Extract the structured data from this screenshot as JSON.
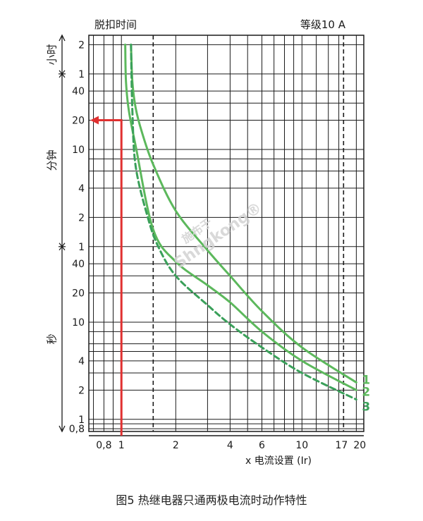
{
  "chart_data": {
    "type": "line",
    "title": "等级10 A",
    "ylabel": "脱扣时间",
    "xlabel": "x 电流设置 (Ir)",
    "x_scale": "log",
    "y_scale": "log",
    "xlim": [
      0.66,
      22
    ],
    "ylim_seconds": [
      0.75,
      9000
    ],
    "x_ticks": [
      {
        "label": "0,8",
        "value": 0.8
      },
      {
        "label": "1",
        "value": 1
      },
      {
        "label": "2",
        "value": 2
      },
      {
        "label": "4",
        "value": 4
      },
      {
        "label": "6",
        "value": 6
      },
      {
        "label": "10",
        "value": 10
      },
      {
        "label": "17",
        "value": 17
      },
      {
        "label": "20",
        "value": 20
      }
    ],
    "y_ticks": [
      {
        "label": "2",
        "value_s": 7200
      },
      {
        "label": "1",
        "value_s": 3600
      },
      {
        "label": "40",
        "value_s": 2400
      },
      {
        "label": "20",
        "value_s": 1200
      },
      {
        "label": "10",
        "value_s": 600
      },
      {
        "label": "4",
        "value_s": 240
      },
      {
        "label": "2",
        "value_s": 120
      },
      {
        "label": "1",
        "value_s": 60
      },
      {
        "label": "40",
        "value_s": 40
      },
      {
        "label": "20",
        "value_s": 20
      },
      {
        "label": "10",
        "value_s": 10
      },
      {
        "label": "4",
        "value_s": 4
      },
      {
        "label": "2",
        "value_s": 2
      },
      {
        "label": "1",
        "value_s": 1
      },
      {
        "label": "0,8",
        "value_s": 0.8
      }
    ],
    "unit_sections": [
      {
        "label": "小时",
        "from_s": 3600,
        "to_s": 9000
      },
      {
        "label": "分钟",
        "from_s": 60,
        "to_s": 3600
      },
      {
        "label": "秒",
        "from_s": 0.75,
        "to_s": 60
      }
    ],
    "dashed_verticals": [
      1.5,
      17
    ],
    "series": [
      {
        "name": "1",
        "style": "solid",
        "color": "#5cb85c",
        "points": [
          [
            1.13,
            7200
          ],
          [
            1.15,
            3000
          ],
          [
            1.2,
            1600
          ],
          [
            1.3,
            900
          ],
          [
            1.5,
            420
          ],
          [
            2,
            140
          ],
          [
            3,
            55
          ],
          [
            4,
            30
          ],
          [
            6,
            13
          ],
          [
            10,
            5.5
          ],
          [
            20,
            2.4
          ]
        ]
      },
      {
        "name": "2",
        "style": "solid",
        "color": "#5cb85c",
        "points": [
          [
            1.05,
            7200
          ],
          [
            1.06,
            3000
          ],
          [
            1.1,
            1500
          ],
          [
            1.2,
            650
          ],
          [
            1.5,
            90
          ],
          [
            2,
            42
          ],
          [
            3,
            24
          ],
          [
            4,
            16
          ],
          [
            6,
            8
          ],
          [
            10,
            4
          ],
          [
            20,
            2
          ]
        ]
      },
      {
        "name": "3",
        "style": "dashed",
        "color": "#3aa05a",
        "points": [
          [
            1.13,
            7200
          ],
          [
            1.15,
            1500
          ],
          [
            1.2,
            400
          ],
          [
            1.4,
            120
          ],
          [
            1.6,
            60
          ],
          [
            2,
            30
          ],
          [
            3,
            15
          ],
          [
            4,
            9.5
          ],
          [
            6,
            5.5
          ],
          [
            10,
            3
          ],
          [
            20,
            1.6
          ]
        ]
      }
    ],
    "annotation": {
      "color": "#e03030",
      "x": 1,
      "y_s": 1200
    },
    "grid": true
  },
  "caption": "图5 热继电器只通两极电流时动作特性",
  "watermark": {
    "cn": "施布于",
    "en": "Shngkong®"
  }
}
